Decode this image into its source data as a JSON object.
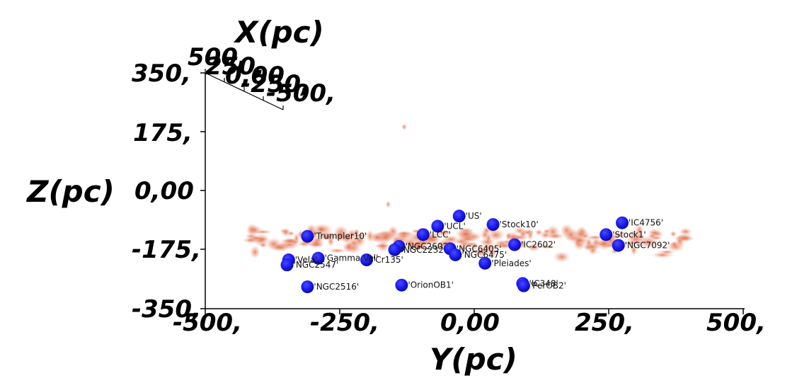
{
  "chart_data": {
    "type": "scatter",
    "title": "",
    "xlabel": "Y(pc)",
    "ylabel": "Z(pc)",
    "depth_label": "X(pc)",
    "xlim": [
      -500,
      500
    ],
    "ylim": [
      -350,
      350
    ],
    "x_ticks": [
      "-500,",
      "-250,",
      "0,00",
      "250,",
      "500,"
    ],
    "y_ticks": [
      "350,",
      "175,",
      "0,00",
      "-175,",
      "-350,"
    ],
    "depth_ticks": [
      "500,",
      "250,",
      "0,00",
      "-250,",
      "-500,"
    ],
    "marker_color": "#1a1aee",
    "dust_color": "#e87a55",
    "series": [
      {
        "points": [
          {
            "label": "'US'",
            "y": -28,
            "z": -75
          },
          {
            "label": "'UCL'",
            "y": -68,
            "z": -105
          },
          {
            "label": "'Stock10'",
            "y": 35,
            "z": -100
          },
          {
            "label": "'IC4756'",
            "y": 275,
            "z": -95
          },
          {
            "label": "'Trumpler10'",
            "y": -310,
            "z": -135
          },
          {
            "label": "'LCC'",
            "y": -95,
            "z": -130
          },
          {
            "label": "'NGC2602'",
            "y": -140,
            "z": -165
          },
          {
            "label": "'NGC2232'",
            "y": -148,
            "z": -175
          },
          {
            "label": "'NGC6405'",
            "y": -45,
            "z": -172
          },
          {
            "label": "'NGC6475'",
            "y": -35,
            "z": -190
          },
          {
            "label": "'Stock1'",
            "y": 245,
            "z": -130
          },
          {
            "label": "'NGC7092'",
            "y": 268,
            "z": -162
          },
          {
            "label": "'Cr135'",
            "y": -200,
            "z": -205
          },
          {
            "label": "'Gamma Vel'",
            "y": -290,
            "z": -200
          },
          {
            "label": "'Vela'",
            "y": -345,
            "z": -205
          },
          {
            "label": "'NGC2547'",
            "y": -348,
            "z": -220
          },
          {
            "label": "'IC2602'",
            "y": 75,
            "z": -160
          },
          {
            "label": "'Pleiades'",
            "y": 20,
            "z": -215
          },
          {
            "label": "'NGC2516'",
            "y": -310,
            "z": -285
          },
          {
            "label": "'OrionOB1'",
            "y": -135,
            "z": -280
          },
          {
            "label": "'IC348'",
            "y": 90,
            "z": -275
          },
          {
            "label": "'PerOB2'",
            "y": 92,
            "z": -282
          }
        ]
      }
    ]
  }
}
